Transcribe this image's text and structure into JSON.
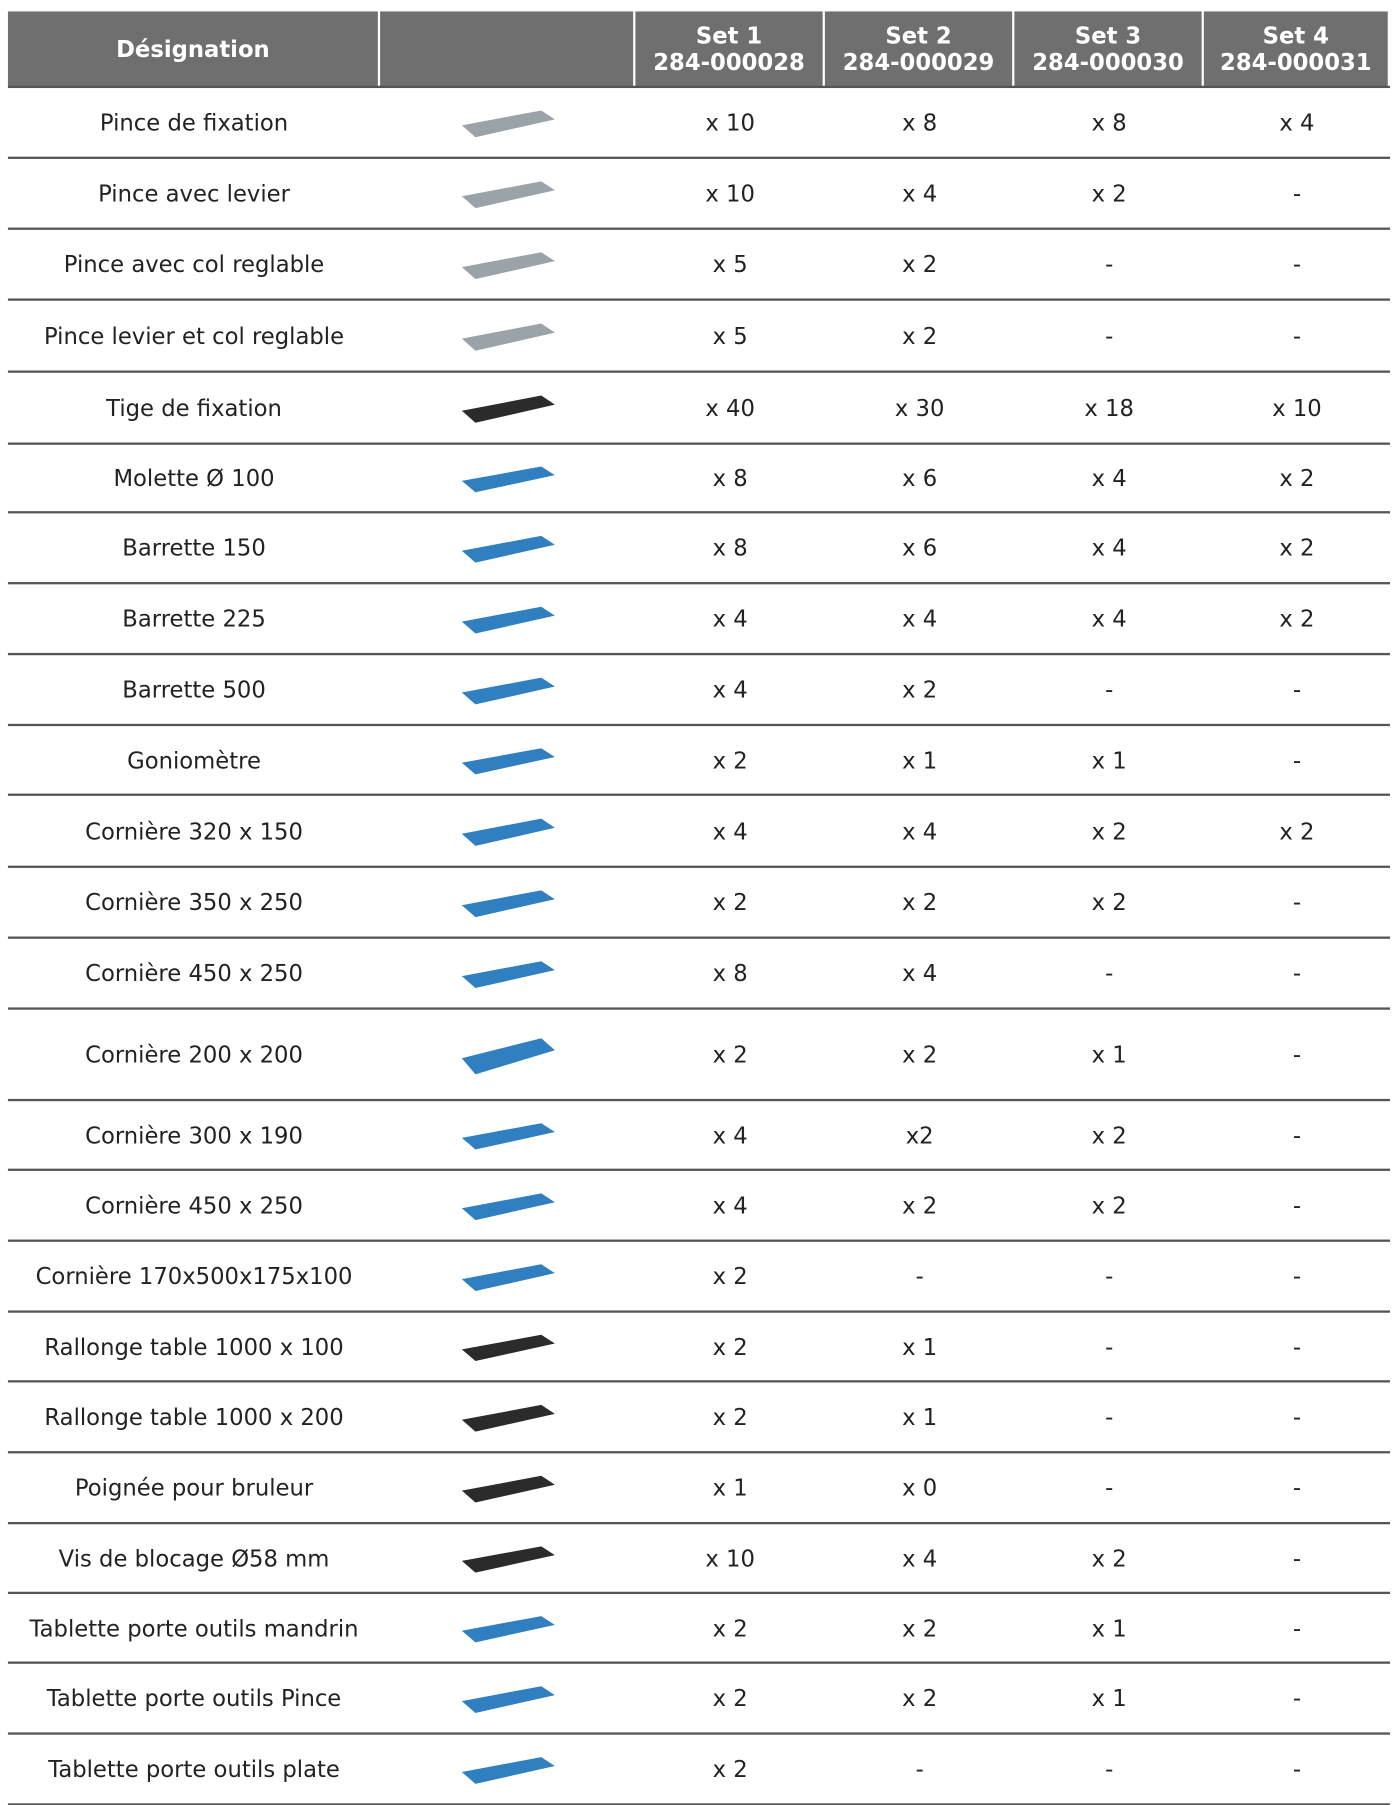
{
  "header": {
    "designation": "Désignation",
    "sets": [
      {
        "name": "Set 1",
        "code": "284-000028"
      },
      {
        "name": "Set 2",
        "code": "284-000029"
      },
      {
        "name": "Set 3",
        "code": "284-000030"
      },
      {
        "name": "Set 4",
        "code": "284-000031"
      }
    ]
  },
  "rows": [
    {
      "name": "Pince de fixation",
      "values": [
        "x 10",
        "x 8",
        "x 8",
        "x 4"
      ]
    },
    {
      "name": "Pince avec levier",
      "values": [
        "x 10",
        "x 4",
        "x 2",
        "-"
      ]
    },
    {
      "name": "Pince avec col reglable",
      "values": [
        "x 5",
        "x 2",
        "-",
        "-"
      ]
    },
    {
      "name": "Pince levier et col reglable",
      "values": [
        "x 5",
        "x 2",
        "-",
        "-"
      ]
    },
    {
      "name": "Tige de fixation",
      "values": [
        "x 40",
        "x 30",
        "x 18",
        "x 10"
      ]
    },
    {
      "name": "Molette Ø 100",
      "values": [
        "x 8",
        "x 6",
        "x 4",
        "x 2"
      ]
    },
    {
      "name": "Barrette 150",
      "values": [
        "x 8",
        "x 6",
        "x 4",
        "x 2"
      ]
    },
    {
      "name": "Barrette 225",
      "values": [
        "x 4",
        "x 4",
        "x 4",
        "x 2"
      ]
    },
    {
      "name": "Barrette 500",
      "values": [
        "x 4",
        "x 2",
        "-",
        "-"
      ]
    },
    {
      "name": "Goniomètre",
      "values": [
        "x 2",
        "x 1",
        "x 1",
        "-"
      ]
    },
    {
      "name": "Cornière 320 x 150",
      "values": [
        "x 4",
        "x 4",
        "x 2",
        "x 2"
      ]
    },
    {
      "name": "Cornière 350 x 250",
      "values": [
        "x 2",
        "x 2",
        "x 2",
        "-"
      ]
    },
    {
      "name": "Cornière 450 x 250",
      "values": [
        "x 8",
        "x 4",
        "-",
        "-"
      ]
    },
    {
      "name": "Cornière 200 x 200",
      "values": [
        "x 2",
        "x 2",
        "x 1",
        "-"
      ]
    },
    {
      "name": "Cornière 300 x 190",
      "values": [
        "x 4",
        "x2",
        "x 2",
        "-"
      ]
    },
    {
      "name": "Cornière 450 x 250",
      "values": [
        "x 4",
        "x 2",
        "x 2",
        "-"
      ]
    },
    {
      "name": "Cornière 170x500x175x100",
      "values": [
        "x 2",
        "-",
        "-",
        "-"
      ]
    },
    {
      "name": "Rallonge table 1000 x 100",
      "values": [
        "x 2",
        "x 1",
        "-",
        "-"
      ]
    },
    {
      "name": "Rallonge table 1000 x 200",
      "values": [
        "x 2",
        "x 1",
        "-",
        "-"
      ]
    },
    {
      "name": "Poignée pour bruleur",
      "values": [
        "x 1",
        "x 0",
        "-",
        "-"
      ]
    },
    {
      "name": "Vis de blocage Ø58 mm",
      "values": [
        "x 10",
        "x 4",
        "x 2",
        "-"
      ]
    },
    {
      "name": "Tablette porte outils mandrin",
      "values": [
        "x 2",
        "x 2",
        "x 1",
        "-"
      ]
    },
    {
      "name": "Tablette porte outils Pince",
      "values": [
        "x 2",
        "x 2",
        "x 1",
        "-"
      ]
    },
    {
      "name": "Tablette porte outils plate",
      "values": [
        "x 2",
        "-",
        "-",
        "-"
      ]
    }
  ]
}
